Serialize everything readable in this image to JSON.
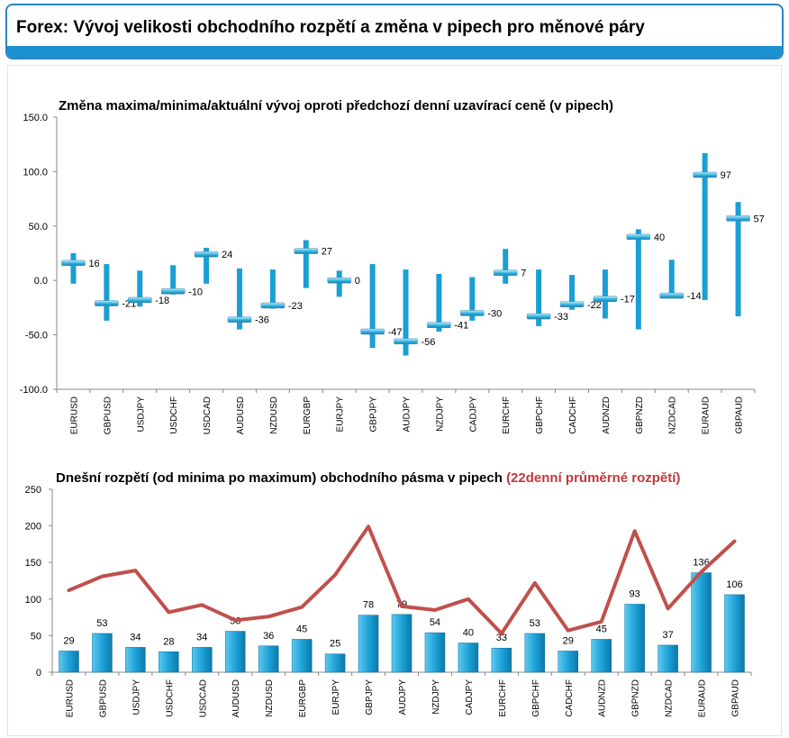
{
  "header": {
    "title": "Forex: Vývoj velikosti obchodního rozpětí a změna v pipech pro měnové páry",
    "accent_color": "#1e8fcf"
  },
  "chart_data": [
    {
      "type": "range",
      "title": "Změna maxima/minima/aktuální vývoj oproti předchozí denní uzavírací ceně (v pipech)",
      "categories": [
        "EURUSD",
        "GBPUSD",
        "USDJPY",
        "USDCHF",
        "USDCAD",
        "AUDUSD",
        "NZDUSD",
        "EURGBP",
        "EURJPY",
        "GBPJPY",
        "AUDJPY",
        "NZDJPY",
        "CADJPY",
        "EURCHF",
        "GBPCHF",
        "CADCHF",
        "AUDNZD",
        "GBPNZD",
        "NZDCAD",
        "EURAUD",
        "GBPAUD"
      ],
      "high": [
        25,
        15,
        9,
        14,
        30,
        11,
        10,
        37,
        9,
        15,
        10,
        6,
        3,
        29,
        10,
        5,
        10,
        47,
        19,
        117,
        72
      ],
      "low": [
        -3,
        -37,
        -24,
        -13,
        -3,
        -45,
        -26,
        -7,
        -15,
        -62,
        -69,
        -47,
        -37,
        -3,
        -42,
        -27,
        -35,
        -45,
        -15,
        -18,
        -33
      ],
      "current": [
        16,
        -21,
        -18,
        -10,
        24,
        -36,
        -23,
        27,
        0,
        -47,
        -56,
        -41,
        -30,
        7,
        -33,
        -22,
        -17,
        40,
        -14,
        97,
        57
      ],
      "labels": [
        "16",
        "-21",
        "-18",
        "-10",
        "24",
        "-36",
        "-23",
        "27",
        "0",
        "-47",
        "-56",
        "-41",
        "-30",
        "7",
        "-33",
        "-22",
        "-17",
        "40",
        "-14",
        "97",
        "57"
      ],
      "ylim": [
        -100,
        150
      ],
      "yticks": [
        "-100.0",
        "-50.0",
        "0.0",
        "50.0",
        "100.0",
        "150.0"
      ],
      "ytick_values": [
        -100,
        -50,
        0,
        50,
        100,
        150
      ],
      "colors": {
        "range": "#1a9fd4",
        "marker": "#3ab8e6"
      }
    },
    {
      "type": "bar+line",
      "title": "Dnešní rozpětí (od minima po maximum) obchodního pásma v pipech",
      "title_extra": "(22denní průměrné rozpětí)",
      "categories": [
        "EURUSD",
        "GBPUSD",
        "USDJPY",
        "USDCHF",
        "USDCAD",
        "AUDUSD",
        "NZDUSD",
        "EURGBP",
        "EURJPY",
        "GBPJPY",
        "AUDJPY",
        "NZDJPY",
        "CADJPY",
        "EURCHF",
        "GBPCHF",
        "CADCHF",
        "AUDNZD",
        "GBPNZD",
        "NZDCAD",
        "EURAUD",
        "GBPAUD"
      ],
      "bar_values": [
        29,
        53,
        34,
        28,
        34,
        56,
        36,
        45,
        25,
        78,
        79,
        54,
        40,
        33,
        53,
        29,
        45,
        93,
        37,
        136,
        106
      ],
      "bar_labels": [
        "29",
        "53",
        "34",
        "28",
        "34",
        "56",
        "36",
        "45",
        "25",
        "78",
        "79",
        "54",
        "40",
        "33",
        "53",
        "29",
        "45",
        "93",
        "37",
        "136",
        "106"
      ],
      "line_values": [
        112,
        131,
        139,
        82,
        92,
        71,
        76,
        89,
        133,
        199,
        90,
        85,
        100,
        53,
        122,
        57,
        69,
        193,
        87,
        137,
        179
      ],
      "ylim": [
        0,
        250
      ],
      "yticks": [
        "0",
        "50",
        "100",
        "150",
        "200",
        "250"
      ],
      "ytick_values": [
        0,
        50,
        100,
        150,
        200,
        250
      ],
      "colors": {
        "bar": "#1a9fd4",
        "line": "#c0504d",
        "title_extra": "#c0393b"
      }
    }
  ]
}
